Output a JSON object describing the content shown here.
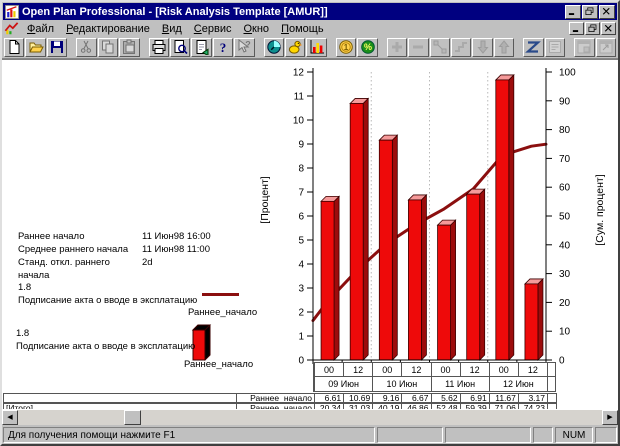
{
  "window": {
    "title": "Open Plan Professional - [Risk Analysis Template [AMUR]]"
  },
  "menu": {
    "items": [
      "Файл",
      "Редактирование",
      "Вид",
      "Сервис",
      "Окно",
      "Помощь"
    ]
  },
  "toolbar": {
    "buttons": [
      {
        "icon": "new-document-icon",
        "disabled": false
      },
      {
        "icon": "open-folder-icon",
        "disabled": false
      },
      {
        "icon": "save-icon",
        "disabled": false
      },
      {
        "gap": true
      },
      {
        "icon": "cut-icon",
        "disabled": true
      },
      {
        "icon": "copy-icon",
        "disabled": true
      },
      {
        "icon": "paste-icon",
        "disabled": true
      },
      {
        "gap": true
      },
      {
        "icon": "print-icon",
        "disabled": false
      },
      {
        "icon": "print-preview-icon",
        "disabled": false
      },
      {
        "icon": "page-export-icon",
        "disabled": false
      },
      {
        "icon": "help-icon",
        "disabled": false
      },
      {
        "icon": "context-help-icon",
        "disabled": true
      },
      {
        "gap": true
      },
      {
        "icon": "time-analysis-clock-icon",
        "disabled": false
      },
      {
        "icon": "resource-bird-icon",
        "disabled": false
      },
      {
        "icon": "risk-histogram-icon",
        "disabled": false
      },
      {
        "gap": true
      },
      {
        "icon": "cost-coin-icon",
        "disabled": false
      },
      {
        "icon": "percent-icon",
        "disabled": false
      },
      {
        "gap": true
      },
      {
        "icon": "add-icon",
        "disabled": true
      },
      {
        "icon": "remove-icon",
        "disabled": true
      },
      {
        "icon": "link-icon",
        "disabled": true
      },
      {
        "icon": "step-icon",
        "disabled": true
      },
      {
        "icon": "move-down-icon",
        "disabled": true
      },
      {
        "icon": "move-up-icon",
        "disabled": true
      },
      {
        "gap": true
      },
      {
        "icon": "zigzag-icon",
        "disabled": false
      },
      {
        "icon": "notes-icon",
        "disabled": true
      },
      {
        "gap": true
      },
      {
        "icon": "subproject-window-icon",
        "disabled": true
      },
      {
        "icon": "external-window-icon",
        "disabled": true
      }
    ]
  },
  "info_panel": {
    "rows": [
      {
        "label": "Раннее начало",
        "value": "11 Июн98 16:00"
      },
      {
        "label": "Среднее раннего начала",
        "value": "11 Июн98 11:00"
      },
      {
        "label": "Станд. откл.  раннего начала",
        "value": "2d"
      }
    ]
  },
  "legend": [
    {
      "value": "1.8",
      "task": "Подписание акта о вводе в эксплатацию",
      "series": "Раннее_начало",
      "swatch": "line"
    },
    {
      "value": "1.8",
      "task": "Подписание акта о вводе в эксплатацию",
      "series": "Раннее_начало",
      "swatch": "bar"
    }
  ],
  "chart_data": {
    "type": "bar",
    "subtype": "histogram-with-cumulative-line",
    "categories": [
      "00",
      "12",
      "00",
      "12",
      "00",
      "12",
      "00",
      "12"
    ],
    "category_groups": [
      "09 Июн",
      "10 Июн",
      "11 Июн",
      "12 Июн"
    ],
    "series": [
      {
        "name": "Раннее_начало",
        "type": "bar",
        "axis": "left",
        "values": [
          6.61,
          10.69,
          9.16,
          6.67,
          5.62,
          6.91,
          11.67,
          3.17
        ]
      },
      {
        "name": "Раннее_начало",
        "type": "line",
        "axis": "right",
        "values": [
          20.34,
          31.03,
          40.19,
          46.86,
          52.48,
          59.39,
          71.06,
          74.23
        ]
      }
    ],
    "left_axis": {
      "label": "[Процент]",
      "min": 0,
      "max": 12,
      "step": 1
    },
    "right_axis": {
      "label": "[Сум. процент]",
      "min": 0,
      "max": 100,
      "step": 10
    },
    "grid": "vertical-dotted-at-day-boundaries",
    "legend_position": "left",
    "colors": {
      "bar_front": "#ee0a0a",
      "bar_top": "#f59a9a",
      "bar_side": "#9c0c0c",
      "line": "#8b0f0f"
    }
  },
  "value_table": {
    "row1_left": "",
    "row1_label": "Раннее_начало",
    "row2_left": "[Итого]",
    "row2_label": "Раннее_начало"
  },
  "statusbar": {
    "help_text": "Для получения помощи нажмите F1",
    "num_indicator": "NUM"
  }
}
